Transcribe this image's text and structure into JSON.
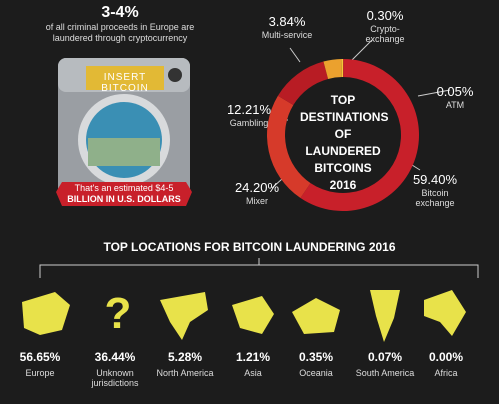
{
  "header": {
    "headline": "3-4%",
    "text": "of all criminal proceeds in Europe are laundered through cryptocurrency",
    "machine_label": "INSERT BITCOIN",
    "estimate_line1": "That's an estimated $4-5",
    "estimate_line2": "BILLION IN U.S. DOLLARS"
  },
  "chart_data": {
    "type": "donut",
    "title": "TOP DESTINATIONS OF LAUNDERED BITCOINS 2016",
    "categories": [
      "ATM",
      "Bitcoin exchange",
      "Mixer",
      "Gambling",
      "Multi-service",
      "Crypto-exchange"
    ],
    "values": [
      0.05,
      59.4,
      24.2,
      12.21,
      3.84,
      0.3
    ],
    "value_labels": [
      "0.05%",
      "59.40%",
      "24.20%",
      "12.21%",
      "3.84%",
      "0.30%"
    ],
    "colors": [
      "#f2c530",
      "#c8202a",
      "#d63a2a",
      "#b81c24",
      "#eba12e",
      "#f4c83a"
    ]
  },
  "locations": {
    "title": "TOP LOCATIONS FOR BITCOIN LAUNDERING 2016",
    "items": [
      {
        "value": "56.65%",
        "name": "Europe"
      },
      {
        "value": "36.44%",
        "name": "Unknown jurisdictions"
      },
      {
        "value": "5.28%",
        "name": "North America"
      },
      {
        "value": "1.21%",
        "name": "Asia"
      },
      {
        "value": "0.35%",
        "name": "Oceania"
      },
      {
        "value": "0.07%",
        "name": "South America"
      },
      {
        "value": "0.00%",
        "name": "Africa"
      }
    ]
  }
}
